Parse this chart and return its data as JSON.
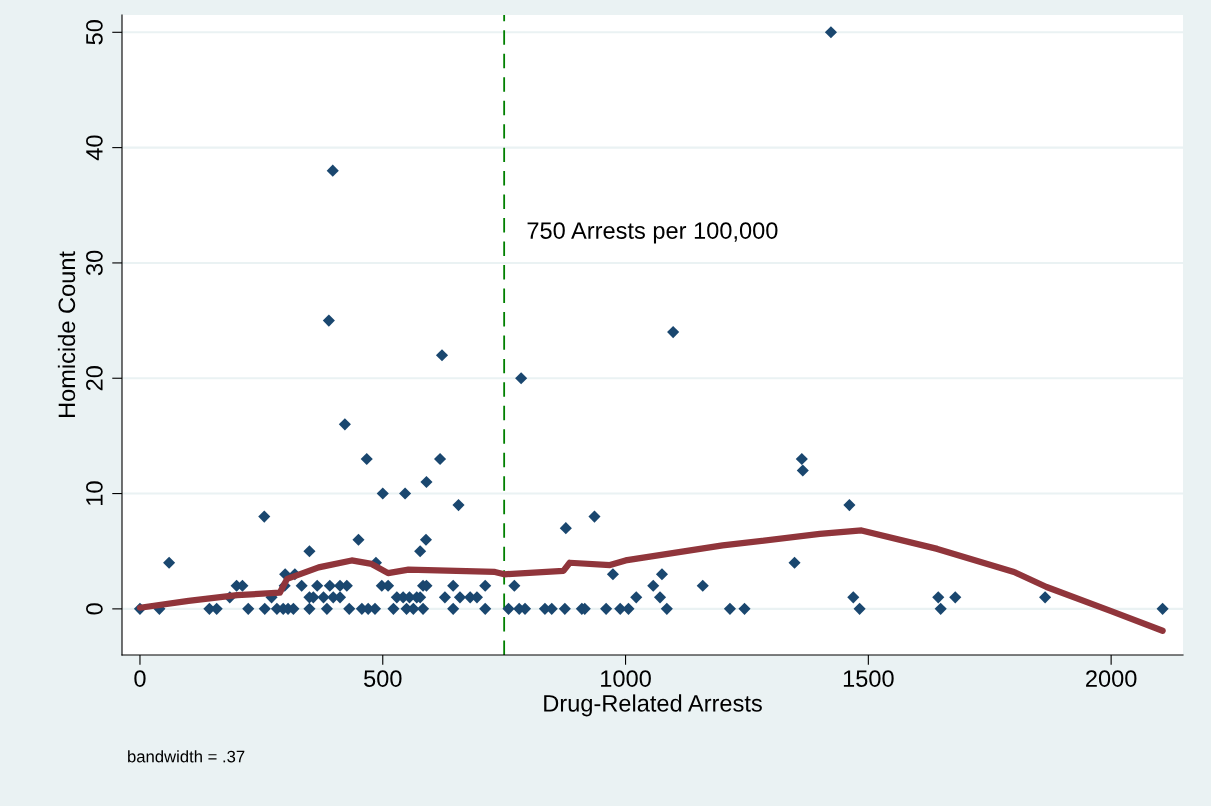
{
  "chart_data": {
    "type": "scatter",
    "xlabel": "Drug-Related Arrests",
    "ylabel": "Homicide Count",
    "xlim": [
      -37,
      2148
    ],
    "ylim": [
      -4,
      51.5
    ],
    "xticks": [
      0,
      500,
      1000,
      1500,
      2000
    ],
    "yticks": [
      0,
      10,
      20,
      30,
      40,
      50
    ],
    "grid": "y",
    "legend": false,
    "series": [
      {
        "color": "#1a476f",
        "marker": "diamond",
        "x": [
          0,
          40,
          60,
          143,
          158,
          185,
          199,
          211,
          223,
          256,
          257,
          271,
          282,
          295,
          305,
          316,
          298,
          299,
          319,
          333,
          349,
          349,
          349,
          365,
          357,
          378,
          385,
          391,
          412,
          398,
          426,
          412,
          431,
          450,
          457,
          470,
          484,
          486,
          500,
          498,
          511,
          522,
          529,
          542,
          546,
          549,
          563,
          555,
          570,
          577,
          589,
          590,
          583,
          590,
          577,
          583,
          628,
          645,
          645,
          659,
          680,
          694,
          656,
          711,
          711,
          397,
          389,
          422,
          467,
          618,
          622,
          759,
          771,
          781,
          793,
          877,
          936,
          834,
          848,
          875,
          910,
          916,
          960,
          974,
          989,
          1006,
          1022,
          1057,
          1071,
          1075,
          1085,
          1098,
          785,
          1159,
          1215,
          1245,
          1348,
          1363,
          1365,
          1423,
          1461,
          1469,
          1482,
          1644,
          1649,
          1679,
          1864,
          2106
        ],
        "values": [
          0,
          0,
          4,
          0,
          0,
          1,
          2,
          2,
          0,
          8,
          0,
          1,
          0,
          0,
          0,
          0,
          2,
          3,
          3,
          2,
          5,
          1,
          0,
          2,
          1,
          1,
          0,
          2,
          2,
          1,
          2,
          1,
          0,
          6,
          0,
          0,
          0,
          4,
          10,
          2,
          2,
          0,
          1,
          1,
          10,
          0,
          0,
          1,
          1,
          5,
          6,
          11,
          2,
          2,
          1,
          0,
          1,
          2,
          0,
          1,
          1,
          1,
          9,
          2,
          0,
          38,
          25,
          16,
          13,
          13,
          22,
          0,
          2,
          0,
          0,
          7,
          8,
          0,
          0,
          0,
          0,
          0,
          0,
          3,
          0,
          0,
          1,
          2,
          1,
          3,
          0,
          24,
          20,
          2,
          0,
          0,
          4,
          13,
          12,
          50,
          9,
          1,
          0,
          1,
          0,
          1,
          1,
          0
        ]
      },
      {
        "type": "line",
        "color": "#90353b",
        "x": [
          0,
          100,
          200,
          288,
          303,
          368,
          436,
          477,
          511,
          553,
          731,
          750,
          872,
          885,
          968,
          1000,
          1200,
          1400,
          1486,
          1642,
          1800,
          1867,
          2000,
          2106
        ],
        "values": [
          0.1,
          0.7,
          1.2,
          1.4,
          2.6,
          3.6,
          4.2,
          3.9,
          3.1,
          3.4,
          3.2,
          3.0,
          3.3,
          4.0,
          3.8,
          4.2,
          5.5,
          6.5,
          6.8,
          5.2,
          3.2,
          1.9,
          -0.2,
          -1.9
        ]
      }
    ],
    "ref_lines": [
      {
        "axis": "x",
        "value": 750,
        "color": "#008000",
        "line_style": "dashed",
        "label": "750 Arrests per 100,000"
      }
    ],
    "annotations": [
      "bandwidth = .37"
    ]
  }
}
